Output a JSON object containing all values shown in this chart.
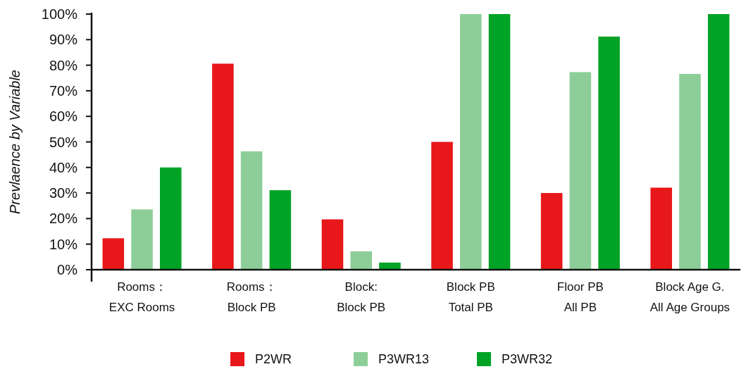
{
  "chart_data": {
    "type": "bar",
    "ylabel": "Prevlaence by Variable",
    "categories": [
      "Rooms：\nEXC Rooms",
      "Rooms：\nBlock PB",
      "Block:\nBlock PB",
      "Block PB\nTotal PB",
      "Floor PB\nAll PB",
      "Block Age G.\nAll Age Groups"
    ],
    "series": [
      {
        "name": "P2WR",
        "color": "#e8171a",
        "values": [
          12.3,
          80.6,
          19.7,
          50,
          30,
          32.1
        ]
      },
      {
        "name": "P3WR13",
        "color": "#8dce98",
        "values": [
          23.6,
          46.3,
          7.2,
          100,
          77.3,
          76.6
        ]
      },
      {
        "name": "P3WR32",
        "color": "#00a325",
        "values": [
          40,
          31.1,
          2.8,
          100,
          91.2,
          100
        ]
      }
    ],
    "ylim": [
      0,
      100
    ],
    "yticks": [
      {
        "value": 0,
        "label": "0%"
      },
      {
        "value": 10,
        "label": "10%"
      },
      {
        "value": 20,
        "label": "20%"
      },
      {
        "value": 30,
        "label": "30%"
      },
      {
        "value": 40,
        "label": "40%"
      },
      {
        "value": 50,
        "label": "50%"
      },
      {
        "value": 60,
        "label": "60%"
      },
      {
        "value": 70,
        "label": "70%"
      },
      {
        "value": 80,
        "label": "80%"
      },
      {
        "value": 90,
        "label": "90%"
      },
      {
        "value": 100,
        "label": "100%"
      }
    ],
    "grid": false,
    "legend": "bottom"
  }
}
